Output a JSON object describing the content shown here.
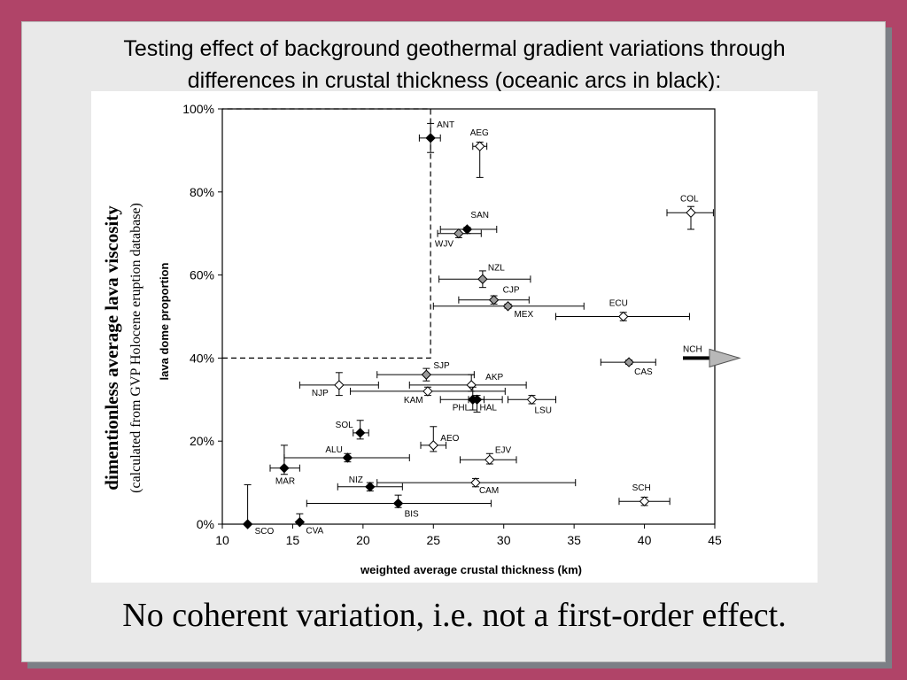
{
  "slide": {
    "title_line1": "Testing effect of background geothermal gradient variations through",
    "title_line2": "differences in crustal thickness (oceanic arcs in black):",
    "conclusion": "No coherent variation, i.e. not a first-order effect."
  },
  "colors": {
    "background": "#b04468",
    "slide": "#e9e9e9",
    "oceanic": "#000000",
    "continental": "#ffffff",
    "intermediate": "#9a9a9a",
    "arrow": "#b8b8b8"
  },
  "chart_data": {
    "type": "scatter",
    "xlabel": "weighted average crustal thickness (km)",
    "ylabel": "lava dome proportion",
    "side_title": "dimentionless average lava viscosity",
    "side_subtitle": "(calculated from GVP Holocene eruption database)",
    "xlim": [
      10,
      45
    ],
    "ylim": [
      0,
      1
    ],
    "x_ticks": [
      10,
      15,
      20,
      25,
      30,
      35,
      40,
      45
    ],
    "y_ticks": [
      {
        "value": 0,
        "label": "0%"
      },
      {
        "value": 0.2,
        "label": "20%"
      },
      {
        "value": 0.4,
        "label": "40%"
      },
      {
        "value": 0.6,
        "label": "60%"
      },
      {
        "value": 0.8,
        "label": "80%"
      },
      {
        "value": 1.0,
        "label": "100%"
      }
    ],
    "threshold_box": {
      "x_max": 24.8,
      "y_min": 0.4
    },
    "offscale_point": {
      "label": "NCH",
      "y": 0.4
    },
    "points": [
      {
        "label": "ANT",
        "x": 24.8,
        "y": 0.93,
        "xerr": [
          24.0,
          25.5
        ],
        "yerr": [
          0.895,
          0.965
        ],
        "fill": "black"
      },
      {
        "label": "AEG",
        "x": 28.3,
        "y": 0.91,
        "xerr": [
          27.8,
          28.8
        ],
        "yerr": [
          0.835,
          0.92
        ],
        "fill": "white"
      },
      {
        "label": "COL",
        "x": 43.3,
        "y": 0.75,
        "xerr": [
          41.6,
          44.9
        ],
        "yerr": [
          0.71,
          0.765
        ],
        "fill": "white"
      },
      {
        "label": "SAN",
        "x": 27.4,
        "y": 0.71,
        "xerr": [
          25.5,
          29.5
        ],
        "yerr": [
          0.7,
          0.715
        ],
        "fill": "black"
      },
      {
        "label": "WJV",
        "x": 26.8,
        "y": 0.7,
        "xerr": [
          25.3,
          28.4
        ],
        "yerr": [
          0.69,
          0.71
        ],
        "fill": "gray"
      },
      {
        "label": "NZL",
        "x": 28.5,
        "y": 0.59,
        "xerr": [
          25.4,
          31.9
        ],
        "yerr": [
          0.57,
          0.61
        ],
        "fill": "gray"
      },
      {
        "label": "CJP",
        "x": 29.3,
        "y": 0.54,
        "xerr": [
          26.8,
          31.8
        ],
        "yerr": [
          0.53,
          0.55
        ],
        "fill": "gray"
      },
      {
        "label": "MEX",
        "x": 30.3,
        "y": 0.525,
        "xerr": [
          25.0,
          35.7
        ],
        "yerr": [
          0.52,
          0.53
        ],
        "fill": "gray"
      },
      {
        "label": "ECU",
        "x": 38.5,
        "y": 0.5,
        "xerr": [
          33.7,
          43.2
        ],
        "yerr": [
          0.49,
          0.51
        ],
        "fill": "white"
      },
      {
        "label": "CAS",
        "x": 38.9,
        "y": 0.39,
        "xerr": [
          36.9,
          40.8
        ],
        "yerr": [
          0.385,
          0.395
        ],
        "fill": "gray"
      },
      {
        "label": "SJP",
        "x": 24.5,
        "y": 0.36,
        "xerr": [
          21.0,
          27.9
        ],
        "yerr": [
          0.345,
          0.375
        ],
        "fill": "gray"
      },
      {
        "label": "AKP",
        "x": 27.7,
        "y": 0.335,
        "xerr": [
          23.3,
          31.6
        ],
        "yerr": [
          0.32,
          0.36
        ],
        "fill": "white"
      },
      {
        "label": "NJP",
        "x": 18.3,
        "y": 0.335,
        "xerr": [
          15.5,
          21.1
        ],
        "yerr": [
          0.31,
          0.365
        ],
        "fill": "white"
      },
      {
        "label": "KAM",
        "x": 24.6,
        "y": 0.32,
        "xerr": [
          19.1,
          30.1
        ],
        "yerr": [
          0.31,
          0.33
        ],
        "fill": "white"
      },
      {
        "label": "PHL",
        "x": 27.8,
        "y": 0.3,
        "xerr": [
          25.5,
          29.9
        ],
        "yerr": [
          0.275,
          0.33
        ],
        "fill": "black"
      },
      {
        "label": "HAL",
        "x": 28.1,
        "y": 0.3,
        "xerr": [
          27.5,
          28.6
        ],
        "yerr": [
          0.27,
          0.31
        ],
        "fill": "black"
      },
      {
        "label": "LSU",
        "x": 32.0,
        "y": 0.3,
        "xerr": [
          30.3,
          33.7
        ],
        "yerr": [
          0.29,
          0.31
        ],
        "fill": "white"
      },
      {
        "label": "SOL",
        "x": 19.8,
        "y": 0.22,
        "xerr": [
          19.3,
          20.4
        ],
        "yerr": [
          0.205,
          0.25
        ],
        "fill": "black"
      },
      {
        "label": "AEO",
        "x": 25.0,
        "y": 0.19,
        "xerr": [
          24.1,
          25.9
        ],
        "yerr": [
          0.175,
          0.235
        ],
        "fill": "white"
      },
      {
        "label": "ALU",
        "x": 18.9,
        "y": 0.16,
        "xerr": [
          14.4,
          23.3
        ],
        "yerr": [
          0.15,
          0.17
        ],
        "fill": "black"
      },
      {
        "label": "EJV",
        "x": 29.0,
        "y": 0.155,
        "xerr": [
          26.9,
          30.9
        ],
        "yerr": [
          0.145,
          0.17
        ],
        "fill": "white"
      },
      {
        "label": "MAR",
        "x": 14.4,
        "y": 0.135,
        "xerr": [
          13.4,
          15.5
        ],
        "yerr": [
          0.12,
          0.19
        ],
        "fill": "black"
      },
      {
        "label": "NIZ",
        "x": 20.5,
        "y": 0.09,
        "xerr": [
          18.2,
          22.8
        ],
        "yerr": [
          0.08,
          0.1
        ],
        "fill": "black"
      },
      {
        "label": "CAM",
        "x": 28.0,
        "y": 0.1,
        "xerr": [
          21.0,
          35.1
        ],
        "yerr": [
          0.09,
          0.11
        ],
        "fill": "white"
      },
      {
        "label": "SCH",
        "x": 40.0,
        "y": 0.055,
        "xerr": [
          38.2,
          41.8
        ],
        "yerr": [
          0.045,
          0.065
        ],
        "fill": "white"
      },
      {
        "label": "BIS",
        "x": 22.5,
        "y": 0.05,
        "xerr": [
          16.0,
          29.1
        ],
        "yerr": [
          0.04,
          0.07
        ],
        "fill": "black"
      },
      {
        "label": "CVA",
        "x": 15.5,
        "y": 0.005,
        "xerr": [
          15.5,
          15.5
        ],
        "yerr": [
          0.0,
          0.025
        ],
        "fill": "black"
      },
      {
        "label": "SCO",
        "x": 11.8,
        "y": 0.0,
        "xerr": [
          11.8,
          11.8
        ],
        "yerr": [
          0.0,
          0.095
        ],
        "fill": "black"
      }
    ]
  }
}
